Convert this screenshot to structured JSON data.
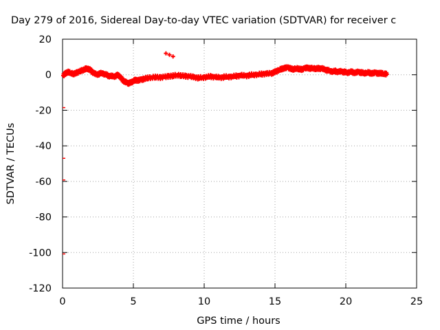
{
  "chart_data": {
    "type": "scatter",
    "title": "Day 279 of 2016, Sidereal Day-to-day VTEC variation (SDTVAR) for receiver c",
    "xlabel": "GPS time / hours",
    "ylabel": "SDTVAR / TECUs",
    "xlim": [
      0,
      25
    ],
    "ylim": [
      -120,
      20
    ],
    "xticks": [
      0,
      5,
      10,
      15,
      20,
      25
    ],
    "yticks": [
      -120,
      -100,
      -80,
      -60,
      -40,
      -20,
      0,
      20
    ],
    "grid": true,
    "marker_color": "#ff0000",
    "series": [
      {
        "points": [
          [
            0.05,
            -0.5
          ],
          [
            0.2,
            0.8
          ],
          [
            0.4,
            1.5
          ],
          [
            0.6,
            1.0
          ],
          [
            0.8,
            0.4
          ],
          [
            1.0,
            1.2
          ],
          [
            1.2,
            1.8
          ],
          [
            1.4,
            2.5
          ],
          [
            1.6,
            3.2
          ],
          [
            1.75,
            3.5
          ],
          [
            1.9,
            3.0
          ],
          [
            2.05,
            2.0
          ],
          [
            2.2,
            0.8
          ],
          [
            2.4,
            0.2
          ],
          [
            2.6,
            0.5
          ],
          [
            2.8,
            1.0
          ],
          [
            3.0,
            0.2
          ],
          [
            3.2,
            -0.4
          ],
          [
            3.4,
            -0.8
          ],
          [
            3.6,
            -1.0
          ],
          [
            3.8,
            -0.5
          ],
          [
            3.95,
            -0.2
          ],
          [
            4.1,
            -1.5
          ],
          [
            4.25,
            -3.0
          ],
          [
            4.4,
            -4.0
          ],
          [
            4.55,
            -4.5
          ],
          [
            4.7,
            -4.8
          ],
          [
            4.85,
            -4.2
          ],
          [
            5.0,
            -3.5
          ],
          [
            5.15,
            -3.0
          ],
          [
            5.35,
            -3.2
          ],
          [
            5.55,
            -2.8
          ],
          [
            5.75,
            -2.4
          ],
          [
            6.0,
            -1.8
          ],
          [
            6.3,
            -1.5
          ],
          [
            6.6,
            -1.3
          ],
          [
            6.9,
            -1.6
          ],
          [
            7.2,
            -1.2
          ],
          [
            7.5,
            -0.9
          ],
          [
            7.8,
            -0.6
          ],
          [
            8.1,
            -0.2
          ],
          [
            8.4,
            -0.5
          ],
          [
            8.7,
            -0.8
          ],
          [
            9.0,
            -1.0
          ],
          [
            9.3,
            -1.4
          ],
          [
            9.6,
            -1.8
          ],
          [
            9.9,
            -1.5
          ],
          [
            10.2,
            -1.2
          ],
          [
            10.5,
            -1.0
          ],
          [
            10.8,
            -1.4
          ],
          [
            11.1,
            -1.6
          ],
          [
            11.4,
            -1.3
          ],
          [
            11.7,
            -1.1
          ],
          [
            12.0,
            -1.0
          ],
          [
            12.3,
            -0.7
          ],
          [
            12.6,
            -0.4
          ],
          [
            12.9,
            -0.6
          ],
          [
            13.2,
            -0.3
          ],
          [
            13.5,
            0.0
          ],
          [
            13.8,
            0.2
          ],
          [
            14.1,
            0.4
          ],
          [
            14.4,
            0.6
          ],
          [
            14.7,
            0.7
          ],
          [
            14.9,
            1.2
          ],
          [
            15.1,
            2.0
          ],
          [
            15.3,
            2.8
          ],
          [
            15.5,
            3.3
          ],
          [
            15.7,
            3.8
          ],
          [
            15.9,
            4.0
          ],
          [
            16.1,
            3.5
          ],
          [
            16.3,
            3.0
          ],
          [
            16.5,
            3.7
          ],
          [
            16.7,
            3.2
          ],
          [
            16.9,
            3.0
          ],
          [
            17.1,
            3.6
          ],
          [
            17.3,
            3.9
          ],
          [
            17.5,
            3.5
          ],
          [
            17.7,
            3.8
          ],
          [
            17.9,
            3.3
          ],
          [
            18.1,
            3.6
          ],
          [
            18.3,
            3.4
          ],
          [
            18.5,
            3.0
          ],
          [
            18.7,
            2.5
          ],
          [
            18.9,
            2.2
          ],
          [
            19.1,
            1.8
          ],
          [
            19.3,
            2.0
          ],
          [
            19.5,
            1.6
          ],
          [
            19.7,
            1.9
          ],
          [
            19.9,
            1.5
          ],
          [
            20.1,
            1.2
          ],
          [
            20.3,
            1.7
          ],
          [
            20.5,
            1.4
          ],
          [
            20.7,
            1.1
          ],
          [
            20.9,
            1.6
          ],
          [
            21.1,
            1.2
          ],
          [
            21.3,
            0.9
          ],
          [
            21.5,
            1.3
          ],
          [
            21.7,
            1.0
          ],
          [
            21.9,
            0.8
          ],
          [
            22.1,
            1.1
          ],
          [
            22.3,
            0.7
          ],
          [
            22.5,
            0.9
          ],
          [
            22.7,
            0.6
          ],
          [
            22.9,
            0.3
          ]
        ],
        "outliers": [
          [
            7.3,
            12.0
          ],
          [
            7.55,
            11.2
          ],
          [
            7.8,
            10.3
          ],
          [
            0.1,
            -18.5
          ],
          [
            0.1,
            -47.0
          ],
          [
            0.1,
            -59.2
          ],
          [
            0.1,
            -100.8
          ]
        ]
      }
    ]
  }
}
